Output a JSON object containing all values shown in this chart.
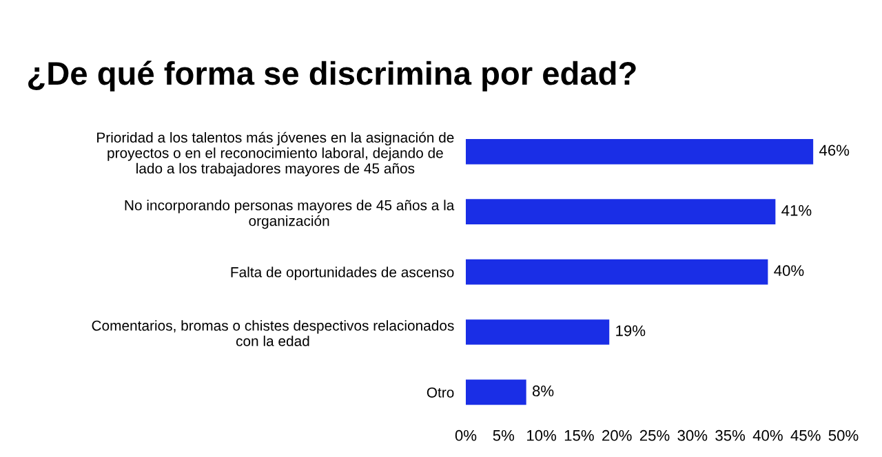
{
  "chart_data": {
    "type": "bar",
    "orientation": "horizontal",
    "title": "¿De qué forma se discrimina por edad?",
    "categories": [
      "Prioridad a los talentos más jóvenes en la asignación de\nproyectos o en el reconocimiento laboral, dejando de\nlado a los trabajadores mayores de 45 años",
      "No incorporando personas mayores de 45 años a la\norganización",
      "Falta de oportunidades de ascenso",
      "Comentarios, bromas o chistes despectivos relacionados\ncon la edad",
      "Otro"
    ],
    "values": [
      46,
      41,
      40,
      19,
      8
    ],
    "value_labels": [
      "46%",
      "41%",
      "40%",
      "19%",
      "8%"
    ],
    "color": "#1a2ee6",
    "xlim": [
      0,
      50
    ],
    "xticks": [
      {
        "value": 0,
        "label": "0%"
      },
      {
        "value": 5,
        "label": "5%"
      },
      {
        "value": 10,
        "label": "10%"
      },
      {
        "value": 15,
        "label": "15%"
      },
      {
        "value": 20,
        "label": "20%"
      },
      {
        "value": 25,
        "label": "25%"
      },
      {
        "value": 30,
        "label": "30%"
      },
      {
        "value": 35,
        "label": "35%"
      },
      {
        "value": 40,
        "label": "40%"
      },
      {
        "value": 45,
        "label": "45%"
      },
      {
        "value": 50,
        "label": "50%"
      }
    ],
    "grid": false
  }
}
